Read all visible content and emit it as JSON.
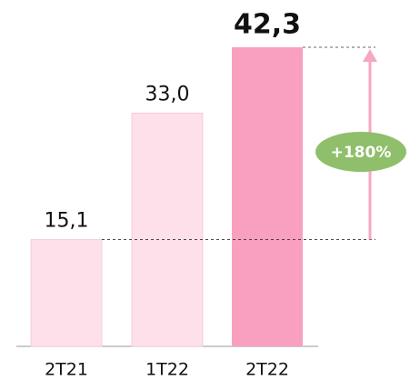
{
  "chart_data": {
    "type": "bar",
    "categories": [
      "2T21",
      "1T22",
      "2T22"
    ],
    "values": [
      15.1,
      33.0,
      42.3
    ],
    "value_labels": [
      "15,1",
      "33,0",
      "42,3"
    ],
    "colors": [
      "#fde0ea",
      "#fde0ea",
      "#f99fc0"
    ],
    "annotation": "+180%",
    "annotation_color": "#8fbf6a",
    "arrow_color": "#f7a6c4"
  }
}
